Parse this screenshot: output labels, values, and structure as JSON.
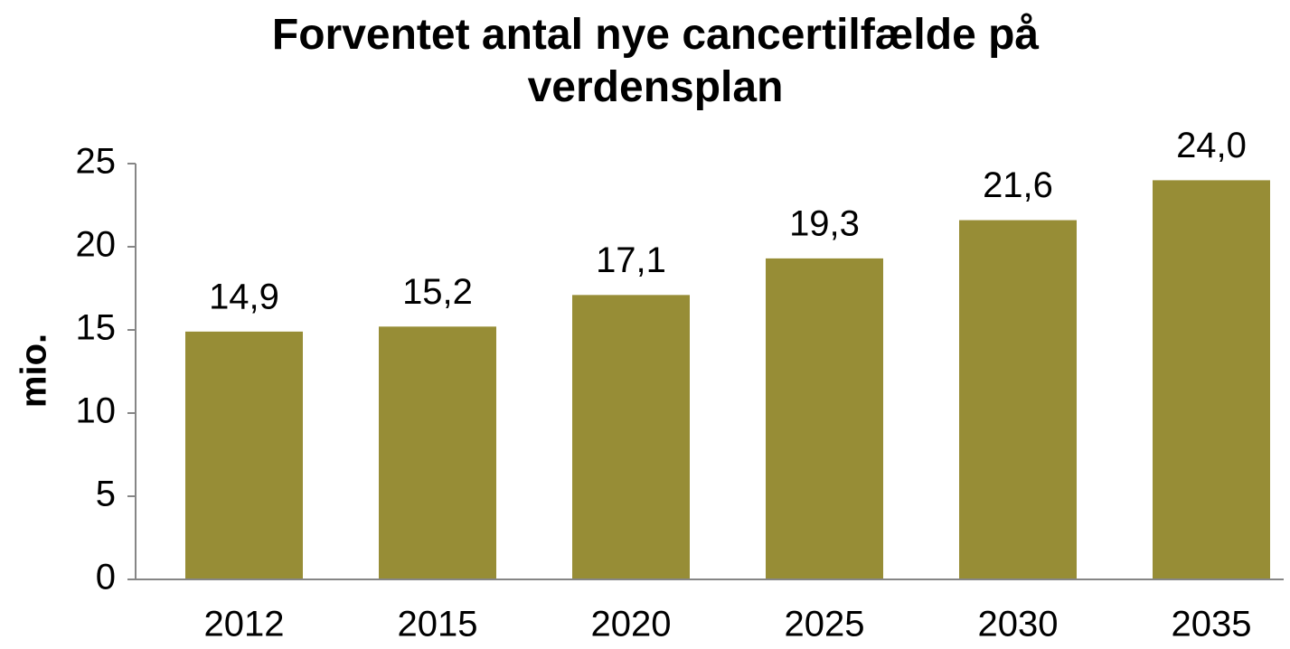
{
  "chart_data": {
    "type": "bar",
    "title": "Forventet antal nye cancertilfælde på verdensplan",
    "y_label": "mio.",
    "categories": [
      "2012",
      "2015",
      "2020",
      "2025",
      "2030",
      "2035"
    ],
    "values": [
      14.9,
      15.2,
      17.1,
      19.3,
      21.6,
      24.0
    ],
    "value_labels": [
      "14,9",
      "15,2",
      "17,1",
      "19,3",
      "21,6",
      "24,0"
    ],
    "color": "#978d36",
    "ylim": [
      0,
      25
    ],
    "yticks": [
      0,
      5,
      10,
      15,
      20,
      25
    ],
    "grid": false
  }
}
